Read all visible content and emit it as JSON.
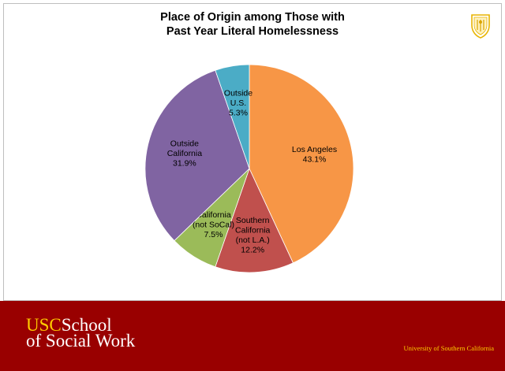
{
  "footer": {
    "brand_usc": "USC",
    "brand_school": "School",
    "brand_line2": "of Social Work",
    "university": "University of Southern California"
  },
  "seal_icon": "usc-shield-icon",
  "colors": {
    "footer_bg": "#990000",
    "brand_gold": "#ffcc00"
  },
  "chart_data": {
    "type": "pie",
    "title": "Place of Origin among Those with Past Year Literal Homelessness",
    "title_lines": [
      "Place of Origin among Those with",
      "Past Year Literal Homelessness"
    ],
    "slices": [
      {
        "label_lines": [
          "Los Angeles"
        ],
        "value": 43.1,
        "value_label": "43.1%",
        "color": "#f79646"
      },
      {
        "label_lines": [
          "Southern",
          "California",
          "(not L.A.)"
        ],
        "value": 12.2,
        "value_label": "12.2%",
        "color": "#c0504d"
      },
      {
        "label_lines": [
          "California",
          "(not SoCal)"
        ],
        "value": 7.5,
        "value_label": "7.5%",
        "color": "#9bbb59"
      },
      {
        "label_lines": [
          "Outside",
          "California"
        ],
        "value": 31.9,
        "value_label": "31.9%",
        "color": "#8064a2"
      },
      {
        "label_lines": [
          "Outside",
          "U.S."
        ],
        "value": 5.3,
        "value_label": "5.3%",
        "color": "#4bacc6"
      }
    ]
  }
}
